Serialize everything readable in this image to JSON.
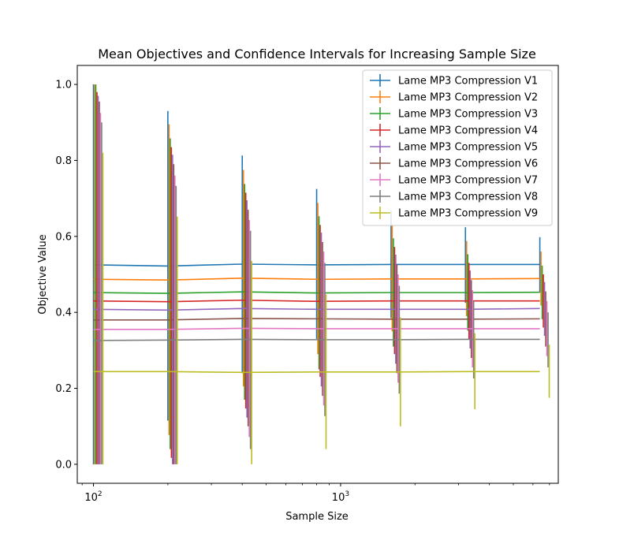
{
  "chart_data": {
    "type": "line",
    "title": "Mean Objectives and Confidence Intervals for Increasing Sample Size",
    "xlabel": "Sample Size",
    "ylabel": "Objective Value",
    "xscale": "log",
    "xlim": [
      86,
      7600
    ],
    "ylim": [
      -0.05,
      1.05
    ],
    "x_ticks": [
      {
        "value": 100,
        "label": "10",
        "exp": "2"
      },
      {
        "value": 1000,
        "label": "10",
        "exp": "3"
      }
    ],
    "y_ticks": [
      "0.0",
      "0.2",
      "0.4",
      "0.6",
      "0.8",
      "1.0"
    ],
    "grid": false,
    "legend_position": "top-right",
    "x": [
      100,
      200,
      400,
      800,
      1600,
      3200,
      6400
    ],
    "series": [
      {
        "name": "Lame MP3 Compression V1",
        "color": "#1f77b4",
        "values": [
          0.525,
          0.522,
          0.527,
          0.525,
          0.526,
          0.526,
          0.526
        ],
        "lower": [
          0.0,
          0.115,
          0.24,
          0.33,
          0.385,
          0.425,
          0.452
        ],
        "upper": [
          1.0,
          0.93,
          0.813,
          0.725,
          0.668,
          0.624,
          0.598
        ]
      },
      {
        "name": "Lame MP3 Compression V2",
        "color": "#ff7f0e",
        "values": [
          0.487,
          0.485,
          0.49,
          0.487,
          0.488,
          0.488,
          0.489
        ],
        "lower": [
          0.0,
          0.077,
          0.205,
          0.29,
          0.35,
          0.39,
          0.418
        ],
        "upper": [
          1.0,
          0.895,
          0.775,
          0.688,
          0.632,
          0.588,
          0.56
        ]
      },
      {
        "name": "Lame MP3 Compression V3",
        "color": "#2ca02c",
        "values": [
          0.452,
          0.45,
          0.454,
          0.451,
          0.452,
          0.452,
          0.453
        ],
        "lower": [
          0.0,
          0.04,
          0.17,
          0.25,
          0.31,
          0.352,
          0.382
        ],
        "upper": [
          1.0,
          0.858,
          0.738,
          0.653,
          0.595,
          0.553,
          0.523
        ]
      },
      {
        "name": "Lame MP3 Compression V4",
        "color": "#d62728",
        "values": [
          0.43,
          0.428,
          0.432,
          0.429,
          0.43,
          0.43,
          0.43
        ],
        "lower": [
          0.0,
          0.017,
          0.147,
          0.23,
          0.29,
          0.33,
          0.36
        ],
        "upper": [
          0.98,
          0.835,
          0.715,
          0.63,
          0.572,
          0.53,
          0.5
        ]
      },
      {
        "name": "Lame MP3 Compression V5",
        "color": "#9467bd",
        "values": [
          0.408,
          0.406,
          0.41,
          0.408,
          0.408,
          0.408,
          0.41
        ],
        "lower": [
          0.0,
          0.0,
          0.123,
          0.205,
          0.265,
          0.305,
          0.338
        ],
        "upper": [
          0.97,
          0.815,
          0.695,
          0.61,
          0.552,
          0.51,
          0.48
        ]
      },
      {
        "name": "Lame MP3 Compression V6",
        "color": "#8c564b",
        "values": [
          0.38,
          0.38,
          0.384,
          0.383,
          0.382,
          0.382,
          0.383
        ],
        "lower": [
          0.0,
          0.0,
          0.1,
          0.18,
          0.24,
          0.28,
          0.31
        ],
        "upper": [
          0.955,
          0.79,
          0.67,
          0.585,
          0.527,
          0.485,
          0.455
        ]
      },
      {
        "name": "Lame MP3 Compression V7",
        "color": "#e377c2",
        "values": [
          0.355,
          0.355,
          0.358,
          0.357,
          0.357,
          0.357,
          0.357
        ],
        "lower": [
          0.0,
          0.0,
          0.072,
          0.155,
          0.215,
          0.255,
          0.285
        ],
        "upper": [
          0.925,
          0.76,
          0.643,
          0.56,
          0.5,
          0.458,
          0.43
        ]
      },
      {
        "name": "Lame MP3 Compression V8",
        "color": "#7f7f7f",
        "values": [
          0.326,
          0.327,
          0.329,
          0.328,
          0.328,
          0.329,
          0.329
        ],
        "lower": [
          0.0,
          0.0,
          0.04,
          0.127,
          0.186,
          0.226,
          0.255
        ],
        "upper": [
          0.9,
          0.733,
          0.615,
          0.53,
          0.47,
          0.43,
          0.4
        ]
      },
      {
        "name": "Lame MP3 Compression V9",
        "color": "#bcbd22",
        "values": [
          0.244,
          0.244,
          0.242,
          0.243,
          0.243,
          0.244,
          0.244
        ],
        "lower": [
          0.0,
          0.0,
          0.0,
          0.04,
          0.1,
          0.145,
          0.175
        ],
        "upper": [
          0.82,
          0.652,
          0.535,
          0.447,
          0.387,
          0.345,
          0.315
        ]
      }
    ]
  }
}
